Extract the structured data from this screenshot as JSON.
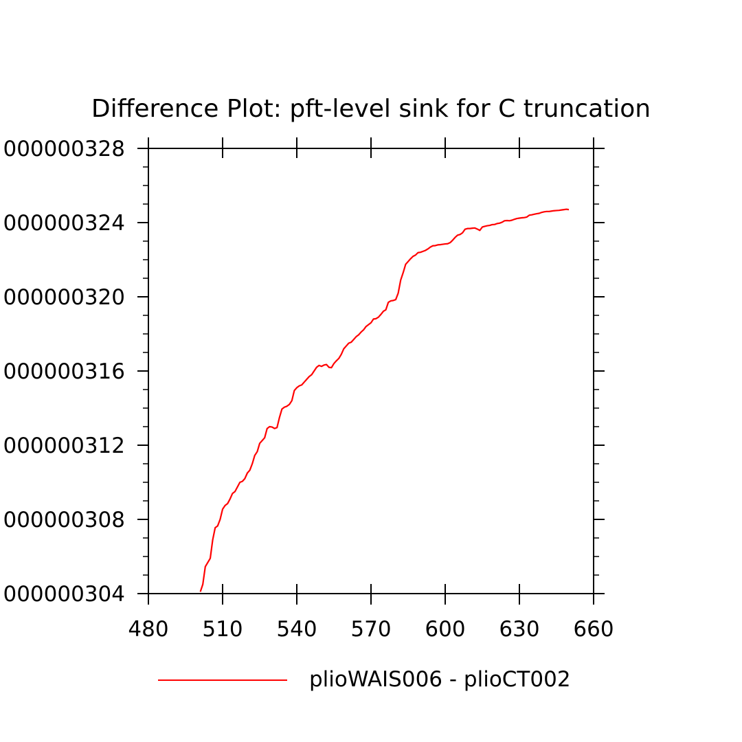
{
  "chart_data": {
    "type": "line",
    "title": "Difference Plot: pft-level sink for C truncation",
    "xlabel": "",
    "ylabel": "",
    "xlim": [
      480,
      660
    ],
    "ylim": [
      3.04e-07,
      3.28e-07
    ],
    "x_ticks": [
      480,
      510,
      540,
      570,
      600,
      630,
      660
    ],
    "x_tick_labels": [
      "480",
      "510",
      "540",
      "570",
      "600",
      "630",
      "660"
    ],
    "y_ticks": [
      3.04e-07,
      3.08e-07,
      3.12e-07,
      3.16e-07,
      3.2e-07,
      3.24e-07,
      3.28e-07
    ],
    "y_tick_labels": [
      "000000304",
      "000000308",
      "000000312",
      "000000316",
      "000000320",
      "000000324",
      "000000328"
    ],
    "grid": false,
    "legend_position": "bottom",
    "series": [
      {
        "name": "plioWAIS006 - plioCT002",
        "color": "#ff0000",
        "x": [
          501,
          502,
          503,
          505,
          506,
          507,
          508,
          509,
          510,
          511,
          512,
          513,
          514,
          515,
          516,
          517,
          518,
          519,
          520,
          521,
          522,
          523,
          524,
          525,
          526,
          527,
          528,
          529,
          530,
          531,
          532,
          533,
          534,
          535,
          536,
          537,
          538,
          539,
          540,
          541,
          542,
          543,
          544,
          545,
          546,
          547,
          548,
          549,
          550,
          551,
          552,
          553,
          554,
          555,
          556,
          557,
          558,
          559,
          560,
          561,
          562,
          563,
          564,
          565,
          566,
          567,
          568,
          569,
          570,
          571,
          572,
          573,
          574,
          575,
          576,
          577,
          578,
          579,
          580,
          581,
          582,
          583,
          584,
          585,
          586,
          587,
          588,
          589,
          590,
          591,
          592,
          593,
          594,
          595,
          596,
          597,
          598,
          599,
          600,
          601,
          602,
          603,
          604,
          605,
          606,
          607,
          608,
          609,
          610,
          611,
          612,
          613,
          614,
          615,
          616,
          617,
          618,
          619,
          620,
          621,
          622,
          623,
          624,
          625,
          626,
          627,
          628,
          629,
          630,
          631,
          632,
          633,
          634,
          635,
          636,
          637,
          638,
          639,
          640,
          641,
          642,
          643,
          644,
          645,
          646,
          647,
          648,
          649,
          650
        ],
        "values": [
          3.041e-07,
          3.045e-07,
          3.0545e-07,
          3.059e-07,
          3.069e-07,
          3.0755e-07,
          3.0765e-07,
          3.08e-07,
          3.0855e-07,
          3.0875e-07,
          3.0885e-07,
          3.091e-07,
          3.094e-07,
          3.095e-07,
          3.0975e-07,
          3.1e-07,
          3.1005e-07,
          3.102e-07,
          3.105e-07,
          3.1065e-07,
          3.11e-07,
          3.1145e-07,
          3.1165e-07,
          3.121e-07,
          3.1225e-07,
          3.124e-07,
          3.129e-07,
          3.13e-07,
          3.1298e-07,
          3.129e-07,
          3.1295e-07,
          3.135e-07,
          3.1395e-07,
          3.1405e-07,
          3.141e-07,
          3.142e-07,
          3.144e-07,
          3.1495e-07,
          3.151e-07,
          3.152e-07,
          3.1525e-07,
          3.154e-07,
          3.1555e-07,
          3.157e-07,
          3.158e-07,
          3.16e-07,
          3.162e-07,
          3.163e-07,
          3.1625e-07,
          3.1632e-07,
          3.1635e-07,
          3.162e-07,
          3.1618e-07,
          3.164e-07,
          3.1655e-07,
          3.1668e-07,
          3.169e-07,
          3.172e-07,
          3.1735e-07,
          3.175e-07,
          3.1755e-07,
          3.177e-07,
          3.1785e-07,
          3.1795e-07,
          3.181e-07,
          3.1822e-07,
          3.184e-07,
          3.185e-07,
          3.186e-07,
          3.188e-07,
          3.1882e-07,
          3.189e-07,
          3.1905e-07,
          3.1922e-07,
          3.193e-07,
          3.197e-07,
          3.1978e-07,
          3.198e-07,
          3.1985e-07,
          3.202e-07,
          3.209e-07,
          3.213e-07,
          3.2175e-07,
          3.219e-07,
          3.2205e-07,
          3.2218e-07,
          3.2225e-07,
          3.2238e-07,
          3.224e-07,
          3.2245e-07,
          3.225e-07,
          3.2258e-07,
          3.2268e-07,
          3.2275e-07,
          3.2276e-07,
          3.228e-07,
          3.2281e-07,
          3.2283e-07,
          3.2285e-07,
          3.2286e-07,
          3.2292e-07,
          3.2305e-07,
          3.232e-07,
          3.2332e-07,
          3.2336e-07,
          3.2345e-07,
          3.2364e-07,
          3.2368e-07,
          3.2368e-07,
          3.237e-07,
          3.2371e-07,
          3.2365e-07,
          3.2358e-07,
          3.2376e-07,
          3.238e-07,
          3.2383e-07,
          3.2385e-07,
          3.2389e-07,
          3.239e-07,
          3.2395e-07,
          3.2397e-07,
          3.2402e-07,
          3.241e-07,
          3.2411e-07,
          3.241e-07,
          3.2413e-07,
          3.2418e-07,
          3.2422e-07,
          3.2424e-07,
          3.2426e-07,
          3.2427e-07,
          3.243e-07,
          3.244e-07,
          3.2442e-07,
          3.2445e-07,
          3.2448e-07,
          3.245e-07,
          3.2455e-07,
          3.2458e-07,
          3.246e-07,
          3.246e-07,
          3.2462e-07,
          3.2464e-07,
          3.2465e-07,
          3.2466e-07,
          3.2468e-07,
          3.247e-07,
          3.2472e-07,
          3.247e-07
        ]
      }
    ]
  }
}
